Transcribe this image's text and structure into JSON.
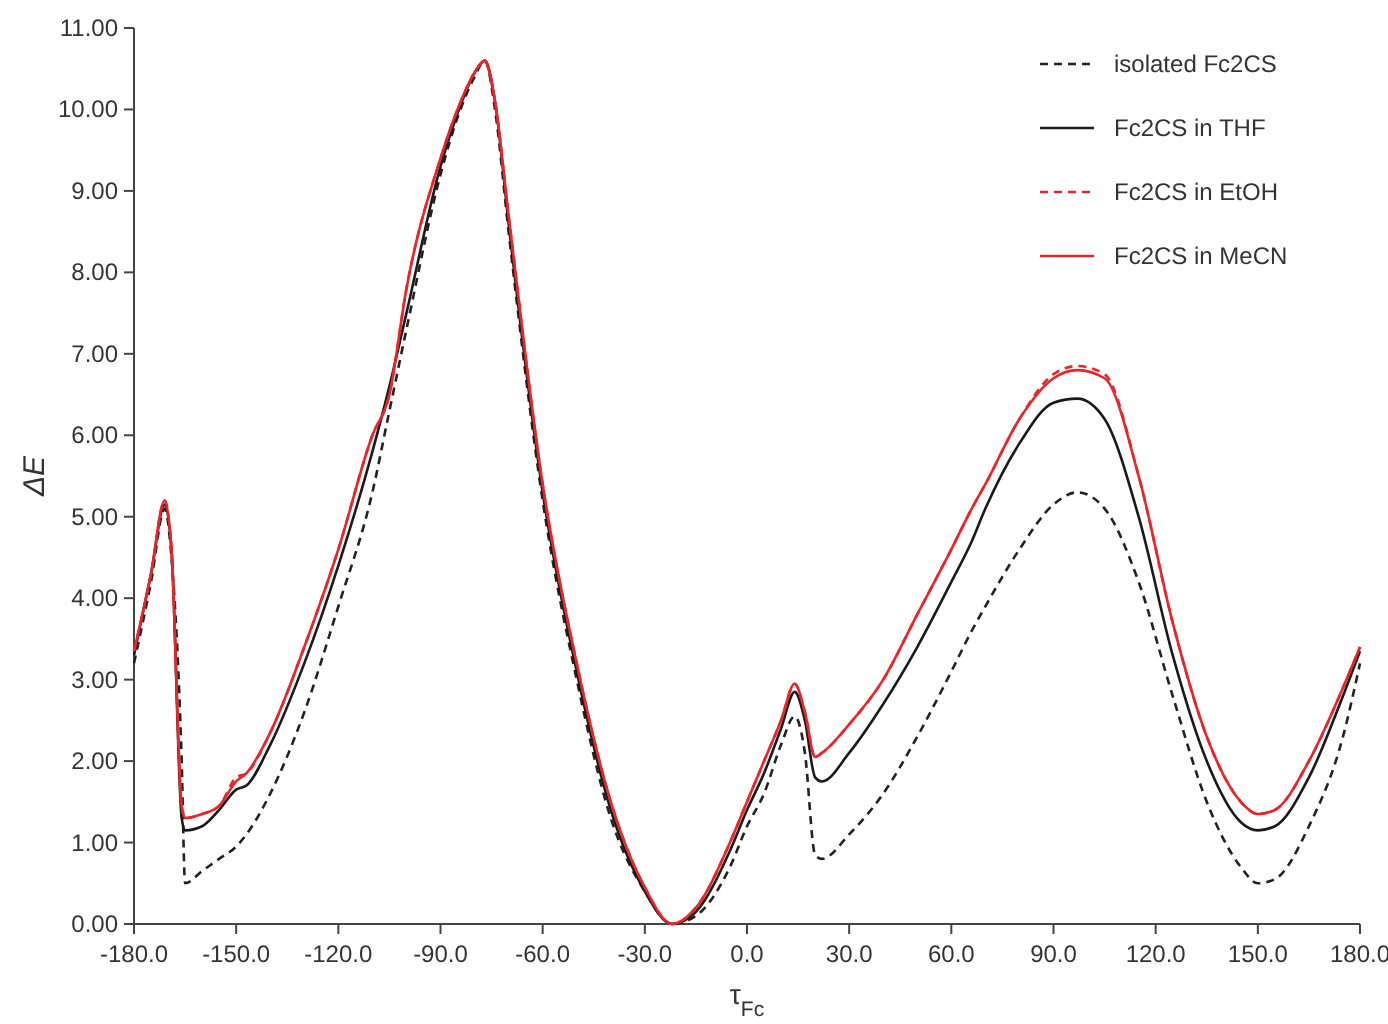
{
  "chart_data": {
    "type": "line",
    "xlabel": "τ$_{Fc}$",
    "ylabel": "ΔE",
    "legend": "top right",
    "grid": false,
    "marker": "none",
    "x": [
      -180,
      -175,
      -171,
      -169,
      -166,
      -165,
      -160,
      -155,
      -150,
      -147,
      -140,
      -130,
      -120,
      -110,
      -105,
      -100,
      -90,
      -85,
      -80,
      -77,
      -74,
      -70,
      -60,
      -50,
      -40,
      -30,
      -22,
      -15,
      -5,
      0,
      5,
      10,
      14,
      17,
      20,
      22,
      30,
      40,
      50,
      60,
      66,
      70,
      80,
      90,
      97,
      105,
      115,
      125,
      135,
      145,
      150,
      155,
      165,
      175,
      180
    ],
    "xlim": [
      -180,
      180
    ],
    "xticks": [
      {
        "value": -180,
        "label": "-180.0"
      },
      {
        "value": -150,
        "label": "-150.0"
      },
      {
        "value": -120,
        "label": "-120.0"
      },
      {
        "value": -90,
        "label": "-90.0"
      },
      {
        "value": -60,
        "label": "-60.0"
      },
      {
        "value": -30,
        "label": "-30.0"
      },
      {
        "value": 0,
        "label": "0.0"
      },
      {
        "value": 30,
        "label": "30.0"
      },
      {
        "value": 60,
        "label": "60.0"
      },
      {
        "value": 90,
        "label": "90.0"
      },
      {
        "value": 120,
        "label": "120.0"
      },
      {
        "value": 150,
        "label": "150.0"
      },
      {
        "value": 180,
        "label": "180.0"
      }
    ],
    "ylim": [
      0,
      11
    ],
    "yticks": [
      {
        "value": 0,
        "label": "0.00"
      },
      {
        "value": 1,
        "label": "1.00"
      },
      {
        "value": 2,
        "label": "2.00"
      },
      {
        "value": 3,
        "label": "3.00"
      },
      {
        "value": 4,
        "label": "4.00"
      },
      {
        "value": 5,
        "label": "5.00"
      },
      {
        "value": 6,
        "label": "6.00"
      },
      {
        "value": 7,
        "label": "7.00"
      },
      {
        "value": 8,
        "label": "8.00"
      },
      {
        "value": 9,
        "label": "9.00"
      },
      {
        "value": 10,
        "label": "10.00"
      },
      {
        "value": 11,
        "label": "11.00"
      }
    ],
    "series": [
      {
        "name": "isolated Fc2CS",
        "color": "#222222",
        "line_style": "dashed",
        "values": [
          3.2,
          4.2,
          5.1,
          4.5,
          2.0,
          0.5,
          0.65,
          0.8,
          0.95,
          1.1,
          1.6,
          2.6,
          3.9,
          5.3,
          6.3,
          7.3,
          9.2,
          9.9,
          10.4,
          10.6,
          10.0,
          8.5,
          5.2,
          3.0,
          1.3,
          0.4,
          0.0,
          0.1,
          0.7,
          1.2,
          1.6,
          2.2,
          2.55,
          2.1,
          0.85,
          0.8,
          1.1,
          1.6,
          2.3,
          3.1,
          3.6,
          3.9,
          4.6,
          5.15,
          5.3,
          5.1,
          4.2,
          2.8,
          1.5,
          0.7,
          0.5,
          0.55,
          1.2,
          2.3,
          3.2
        ]
      },
      {
        "name": "Fc2CS in THF",
        "color": "#1a1a1a",
        "line_style": "solid",
        "values": [
          3.3,
          4.3,
          5.15,
          4.6,
          1.3,
          1.15,
          1.2,
          1.4,
          1.65,
          1.7,
          2.2,
          3.2,
          4.4,
          5.8,
          6.6,
          7.5,
          9.3,
          9.95,
          10.45,
          10.6,
          10.1,
          8.6,
          5.3,
          3.1,
          1.4,
          0.4,
          0.0,
          0.15,
          0.9,
          1.4,
          1.85,
          2.4,
          2.85,
          2.5,
          1.8,
          1.75,
          2.1,
          2.7,
          3.4,
          4.2,
          4.7,
          5.1,
          5.9,
          6.4,
          6.45,
          6.2,
          5.0,
          3.3,
          2.0,
          1.25,
          1.15,
          1.2,
          1.8,
          2.8,
          3.35
        ]
      },
      {
        "name": "Fc2CS in EtOH",
        "color": "#e8262a",
        "line_style": "dashed",
        "values": [
          3.35,
          4.3,
          5.2,
          4.6,
          1.45,
          1.3,
          1.35,
          1.45,
          1.8,
          1.85,
          2.35,
          3.4,
          4.6,
          6.0,
          6.5,
          7.8,
          9.4,
          10.0,
          10.45,
          10.6,
          10.1,
          8.7,
          5.4,
          3.2,
          1.5,
          0.45,
          0.0,
          0.2,
          1.0,
          1.5,
          2.0,
          2.5,
          2.95,
          2.6,
          2.05,
          2.1,
          2.45,
          3.0,
          3.8,
          4.6,
          5.1,
          5.4,
          6.2,
          6.75,
          6.85,
          6.75,
          5.5,
          3.7,
          2.3,
          1.5,
          1.35,
          1.4,
          2.0,
          2.9,
          3.4
        ]
      },
      {
        "name": "Fc2CS in MeCN",
        "color": "#e8262a",
        "line_style": "solid",
        "values": [
          3.35,
          4.3,
          5.2,
          4.6,
          1.45,
          1.3,
          1.35,
          1.45,
          1.75,
          1.85,
          2.35,
          3.4,
          4.6,
          6.0,
          6.5,
          7.8,
          9.4,
          10.0,
          10.45,
          10.6,
          10.1,
          8.7,
          5.4,
          3.2,
          1.5,
          0.45,
          0.0,
          0.2,
          1.0,
          1.5,
          2.0,
          2.5,
          2.95,
          2.6,
          2.05,
          2.1,
          2.45,
          3.0,
          3.8,
          4.6,
          5.1,
          5.4,
          6.2,
          6.7,
          6.8,
          6.7,
          5.5,
          3.7,
          2.3,
          1.5,
          1.35,
          1.4,
          2.0,
          2.9,
          3.4
        ]
      }
    ]
  }
}
